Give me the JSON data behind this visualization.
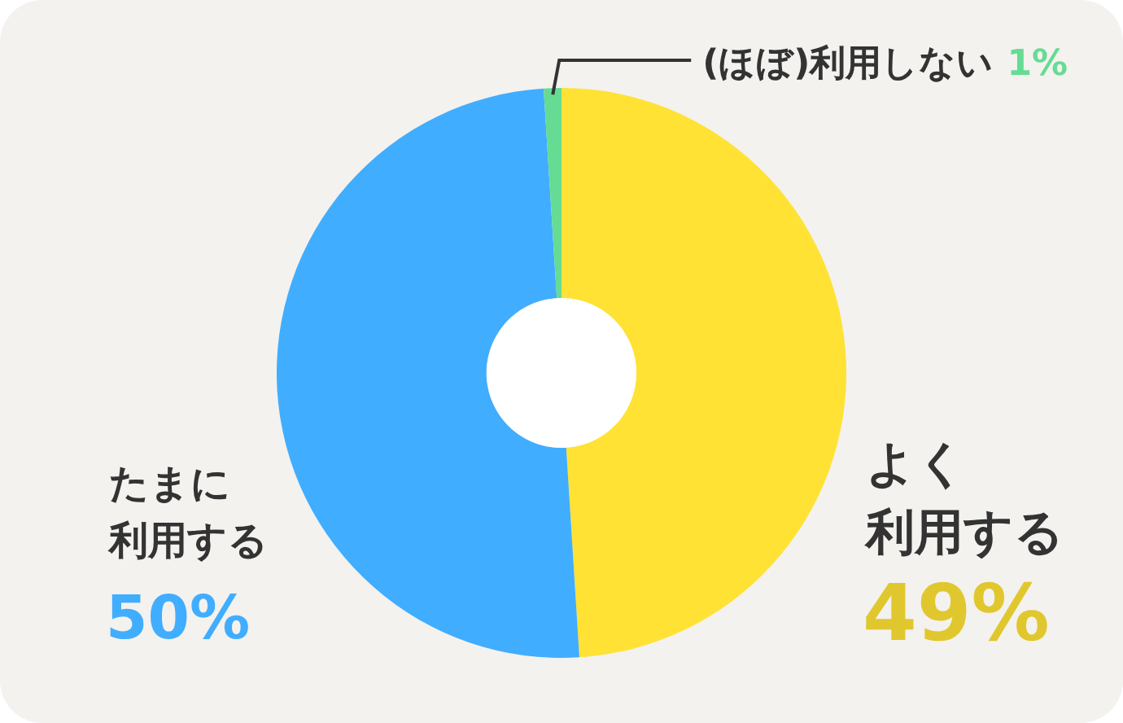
{
  "chart_data": {
    "type": "donut",
    "categories": [
      "よく利用する",
      "たまに利用する",
      "(ほぼ)利用しない"
    ],
    "values": [
      49,
      50,
      1
    ],
    "colors": [
      "#ffe234",
      "#41adff",
      "#66db94"
    ],
    "value_labels": [
      "49%",
      "50%",
      "1%"
    ]
  }
}
